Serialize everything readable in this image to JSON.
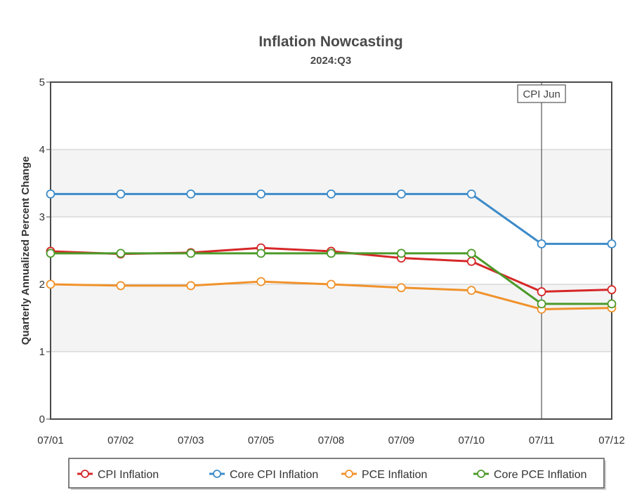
{
  "chart_data": {
    "type": "line",
    "title": "Inflation Nowcasting",
    "subtitle": "2024:Q3",
    "ylabel": "Quarterly Annualized Percent Change",
    "xlabel": "",
    "categories": [
      "07/01",
      "07/02",
      "07/03",
      "07/05",
      "07/08",
      "07/09",
      "07/10",
      "07/11",
      "07/12"
    ],
    "ylim": [
      0,
      5
    ],
    "yticks": [
      0,
      1,
      2,
      3,
      4,
      5
    ],
    "grid": true,
    "shaded_bands": [
      [
        1,
        2
      ],
      [
        3,
        4
      ]
    ],
    "legend_position": "bottom",
    "series": [
      {
        "name": "CPI Inflation",
        "color": "#d62728",
        "values": [
          2.49,
          2.45,
          2.47,
          2.54,
          2.49,
          2.39,
          2.34,
          1.89,
          1.92
        ]
      },
      {
        "name": "Core CPI Inflation",
        "color": "#3d8bc9",
        "values": [
          3.34,
          3.34,
          3.34,
          3.34,
          3.34,
          3.34,
          3.34,
          2.6,
          2.6
        ]
      },
      {
        "name": "PCE Inflation",
        "color": "#f0922b",
        "values": [
          2.0,
          1.98,
          1.98,
          2.04,
          2.0,
          1.95,
          1.91,
          1.63,
          1.65
        ]
      },
      {
        "name": "Core PCE Inflation",
        "color": "#4c9a2a",
        "values": [
          2.46,
          2.46,
          2.46,
          2.46,
          2.46,
          2.46,
          2.46,
          1.71,
          1.71
        ]
      }
    ],
    "annotations": [
      {
        "text": "CPI Jun",
        "x": "07/11"
      }
    ]
  }
}
